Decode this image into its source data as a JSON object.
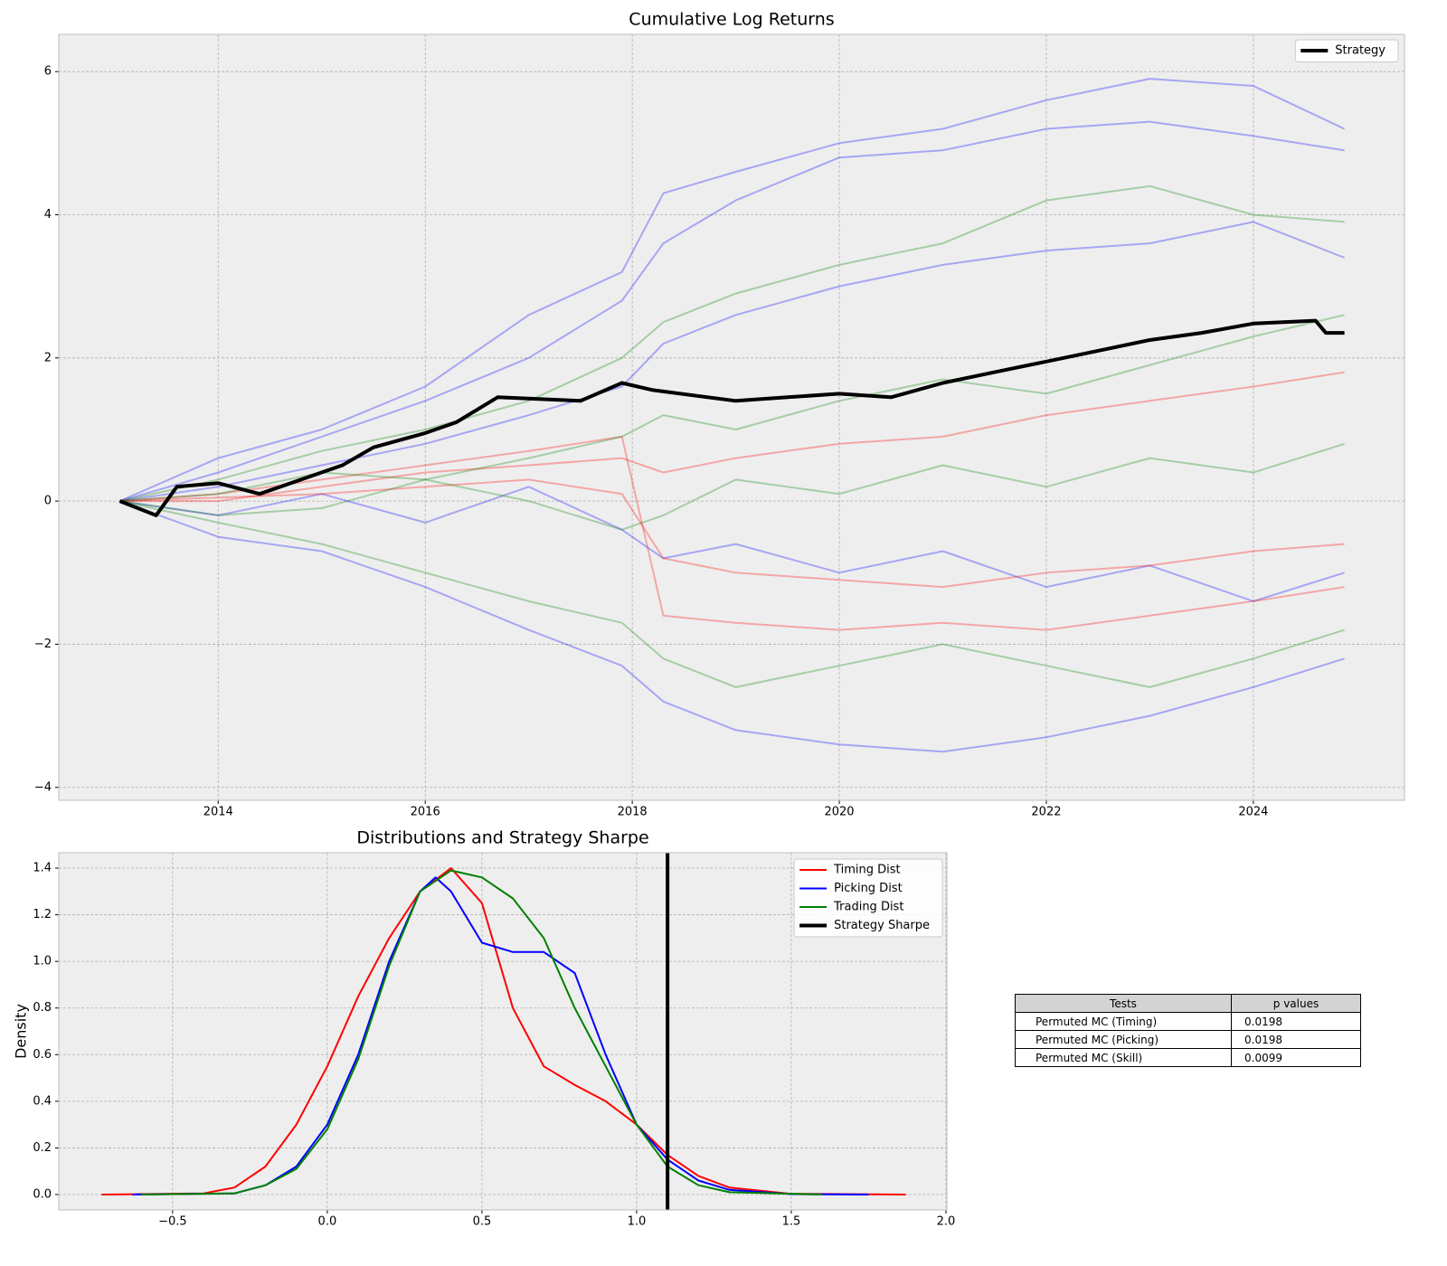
{
  "chart_data": [
    {
      "type": "line",
      "title": "Cumulative Log Returns",
      "xlim": [
        2012.46,
        2025.46
      ],
      "xticks": [
        2014,
        2016,
        2018,
        2020,
        2022,
        2024
      ],
      "ylim": [
        -4.18,
        6.52
      ],
      "yticks": [
        {
          "value": -4,
          "label": "−4"
        },
        {
          "value": -2,
          "label": "−2"
        },
        0,
        2,
        4,
        6
      ],
      "grid": true,
      "legend": "upper right",
      "x": [
        2013.05,
        2014,
        2015,
        2016,
        2017,
        2017.9,
        2018.3,
        2019,
        2020,
        2021,
        2022,
        2023,
        2024,
        2024.88
      ],
      "series": [
        {
          "color": "blue",
          "alpha": 0.3,
          "linewidth": 2,
          "values": [
            0,
            0.6,
            1.0,
            1.6,
            2.6,
            3.2,
            4.3,
            4.6,
            5.0,
            5.2,
            5.6,
            5.9,
            5.8,
            5.2
          ]
        },
        {
          "color": "blue",
          "alpha": 0.3,
          "linewidth": 2,
          "values": [
            0,
            0.4,
            0.9,
            1.4,
            2.0,
            2.8,
            3.6,
            4.2,
            4.8,
            4.9,
            5.2,
            5.3,
            5.1,
            4.9
          ]
        },
        {
          "color": "blue",
          "alpha": 0.3,
          "linewidth": 2,
          "values": [
            0,
            -0.5,
            -0.7,
            -1.2,
            -1.8,
            -2.3,
            -2.8,
            -3.2,
            -3.4,
            -3.5,
            -3.3,
            -3.0,
            -2.6,
            -2.2
          ]
        },
        {
          "color": "blue",
          "alpha": 0.3,
          "linewidth": 2,
          "values": [
            0,
            0.2,
            0.5,
            0.8,
            1.2,
            1.6,
            2.2,
            2.6,
            3.0,
            3.3,
            3.5,
            3.6,
            3.9,
            3.4
          ]
        },
        {
          "color": "blue",
          "alpha": 0.3,
          "linewidth": 2,
          "values": [
            0,
            -0.2,
            0.1,
            -0.3,
            0.2,
            -0.4,
            -0.8,
            -0.6,
            -1.0,
            -0.7,
            -1.2,
            -0.9,
            -1.4,
            -1.0
          ]
        },
        {
          "color": "red",
          "alpha": 0.3,
          "linewidth": 2,
          "values": [
            0,
            0.1,
            0.3,
            0.5,
            0.7,
            0.9,
            -1.6,
            -1.7,
            -1.8,
            -1.7,
            -1.8,
            -1.6,
            -1.4,
            -1.2
          ]
        },
        {
          "color": "red",
          "alpha": 0.3,
          "linewidth": 2,
          "values": [
            0,
            0.0,
            0.2,
            0.4,
            0.5,
            0.6,
            0.4,
            0.6,
            0.8,
            0.9,
            1.2,
            1.4,
            1.6,
            1.8
          ]
        },
        {
          "color": "red",
          "alpha": 0.3,
          "linewidth": 2,
          "values": [
            0,
            0.05,
            0.1,
            0.2,
            0.3,
            0.1,
            -0.8,
            -1.0,
            -1.1,
            -1.2,
            -1.0,
            -0.9,
            -0.7,
            -0.6
          ]
        },
        {
          "color": "green",
          "alpha": 0.3,
          "linewidth": 2,
          "values": [
            0,
            0.3,
            0.7,
            1.0,
            1.4,
            2.0,
            2.5,
            2.9,
            3.3,
            3.6,
            4.2,
            4.4,
            4.0,
            3.9
          ]
        },
        {
          "color": "green",
          "alpha": 0.3,
          "linewidth": 2,
          "values": [
            0,
            -0.3,
            -0.6,
            -1.0,
            -1.4,
            -1.7,
            -2.2,
            -2.6,
            -2.3,
            -2.0,
            -2.3,
            -2.6,
            -2.2,
            -1.8
          ]
        },
        {
          "color": "green",
          "alpha": 0.3,
          "linewidth": 2,
          "values": [
            0,
            0.1,
            0.4,
            0.3,
            0.6,
            0.9,
            1.2,
            1.0,
            1.4,
            1.7,
            1.5,
            1.9,
            2.3,
            2.6
          ]
        },
        {
          "color": "green",
          "alpha": 0.3,
          "linewidth": 2,
          "values": [
            0,
            -0.2,
            -0.1,
            0.3,
            0.0,
            -0.4,
            -0.2,
            0.3,
            0.1,
            0.5,
            0.2,
            0.6,
            0.4,
            0.8
          ]
        },
        {
          "name": "Strategy",
          "color": "black",
          "alpha": 1,
          "linewidth": 4,
          "x": [
            2013.05,
            2013.4,
            2013.6,
            2014,
            2014.4,
            2014.8,
            2015.2,
            2015.5,
            2016.0,
            2016.3,
            2016.7,
            2017.5,
            2017.9,
            2018.2,
            2019.0,
            2019.5,
            2020.0,
            2020.5,
            2021.0,
            2021.5,
            2022.0,
            2022.5,
            2023.0,
            2023.5,
            2024.0,
            2024.6,
            2024.7,
            2024.88
          ],
          "values": [
            0,
            -0.2,
            0.2,
            0.25,
            0.1,
            0.3,
            0.5,
            0.75,
            0.95,
            1.1,
            1.45,
            1.4,
            1.65,
            1.55,
            1.4,
            1.45,
            1.5,
            1.45,
            1.65,
            1.8,
            1.95,
            2.1,
            2.25,
            2.35,
            2.48,
            2.52,
            2.35,
            2.35
          ]
        }
      ]
    },
    {
      "type": "line",
      "title": "Distributions and Strategy Sharpe",
      "ylabel": "Density",
      "xlim": [
        -0.868,
        2.003
      ],
      "xticks": [
        {
          "value": -0.5,
          "label": "−0.5"
        },
        {
          "value": 0,
          "label": "0.0"
        },
        {
          "value": 0.5,
          "label": "0.5"
        },
        {
          "value": 1,
          "label": "1.0"
        },
        {
          "value": 1.5,
          "label": "1.5"
        },
        {
          "value": 2,
          "label": "2.0"
        }
      ],
      "ylim": [
        -0.066,
        1.466
      ],
      "yticks": [
        {
          "value": 0,
          "label": "0.0"
        },
        0.2,
        0.4,
        0.6,
        0.8,
        {
          "value": 1,
          "label": "1.0"
        },
        1.2,
        1.4
      ],
      "grid": true,
      "legend": "upper right",
      "series": [
        {
          "name": "Timing Dist",
          "color": "red",
          "alpha": 1,
          "linewidth": 2,
          "x": [
            -0.73,
            -0.4,
            -0.3,
            -0.2,
            -0.1,
            0,
            0.1,
            0.2,
            0.3,
            0.4,
            0.5,
            0.6,
            0.7,
            0.8,
            0.9,
            1.0,
            1.1,
            1.2,
            1.3,
            1.5,
            1.87
          ],
          "values": [
            0,
            0.005,
            0.03,
            0.12,
            0.3,
            0.55,
            0.85,
            1.1,
            1.3,
            1.4,
            1.25,
            0.8,
            0.55,
            0.47,
            0.4,
            0.3,
            0.17,
            0.08,
            0.03,
            0.003,
            0
          ]
        },
        {
          "name": "Picking Dist",
          "color": "blue",
          "alpha": 1,
          "linewidth": 2,
          "x": [
            -0.63,
            -0.3,
            -0.2,
            -0.1,
            0,
            0.1,
            0.2,
            0.3,
            0.35,
            0.4,
            0.5,
            0.6,
            0.7,
            0.8,
            0.9,
            1.0,
            1.1,
            1.2,
            1.3,
            1.5,
            1.75
          ],
          "values": [
            0,
            0.005,
            0.04,
            0.12,
            0.3,
            0.6,
            1.0,
            1.3,
            1.36,
            1.3,
            1.08,
            1.04,
            1.04,
            0.95,
            0.6,
            0.3,
            0.15,
            0.06,
            0.02,
            0.002,
            0
          ]
        },
        {
          "name": "Trading Dist",
          "color": "green",
          "alpha": 1,
          "linewidth": 2,
          "x": [
            -0.6,
            -0.3,
            -0.2,
            -0.1,
            0,
            0.1,
            0.2,
            0.3,
            0.4,
            0.5,
            0.6,
            0.7,
            0.8,
            0.9,
            1.0,
            1.1,
            1.2,
            1.3,
            1.6
          ],
          "values": [
            0,
            0.005,
            0.04,
            0.11,
            0.28,
            0.58,
            0.98,
            1.3,
            1.39,
            1.36,
            1.27,
            1.1,
            0.8,
            0.55,
            0.3,
            0.12,
            0.04,
            0.01,
            0
          ]
        }
      ],
      "vlines": [
        {
          "name": "Strategy Sharpe",
          "color": "black",
          "linewidth": 4,
          "x": 1.1
        }
      ]
    }
  ],
  "table": {
    "header": [
      "Tests",
      "p values"
    ],
    "rows": [
      [
        "Permuted MC (Timing)",
        0.0198
      ],
      [
        "Permuted MC (Picking)",
        0.0198
      ],
      [
        "Permuted MC (Skill)",
        0.0099
      ]
    ]
  }
}
